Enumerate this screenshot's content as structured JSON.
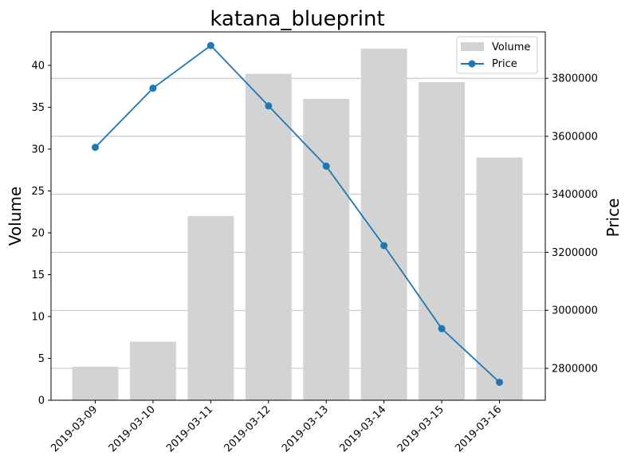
{
  "chart_data": {
    "type": "bar+line",
    "title": "katana_blueprint",
    "categories": [
      "2019-03-09",
      "2019-03-10",
      "2019-03-11",
      "2019-03-12",
      "2019-03-13",
      "2019-03-14",
      "2019-03-15",
      "2019-03-16"
    ],
    "series": [
      {
        "name": "Volume",
        "type": "bar",
        "axis": "left",
        "color": "#d3d3d3",
        "values": [
          4,
          7,
          22,
          39,
          36,
          42,
          38,
          29
        ]
      },
      {
        "name": "Price",
        "type": "line",
        "axis": "right",
        "color": "#1f77b4",
        "marker": "circle",
        "values": [
          3562000,
          3766000,
          3913000,
          3705000,
          3497000,
          3223000,
          2937000,
          2752000
        ]
      }
    ],
    "y_left": {
      "label": "Volume",
      "ylim": [
        0,
        44
      ],
      "ticks": [
        0,
        5,
        10,
        15,
        20,
        25,
        30,
        35,
        40
      ],
      "tick_labels": [
        "0",
        "5",
        "10",
        "15",
        "20",
        "25",
        "30",
        "35",
        "40"
      ]
    },
    "y_right": {
      "label": "Price",
      "ylim": [
        2690000,
        3960000
      ],
      "ticks": [
        2800000,
        3000000,
        3200000,
        3400000,
        3600000,
        3800000
      ],
      "tick_labels": [
        "2800000",
        "3000000",
        "3200000",
        "3400000",
        "3600000",
        "3800000"
      ]
    },
    "grid": "horizontal lines at right-axis ticks",
    "legend": {
      "placement": "top-right",
      "entries": [
        "Volume",
        "Price"
      ]
    }
  }
}
